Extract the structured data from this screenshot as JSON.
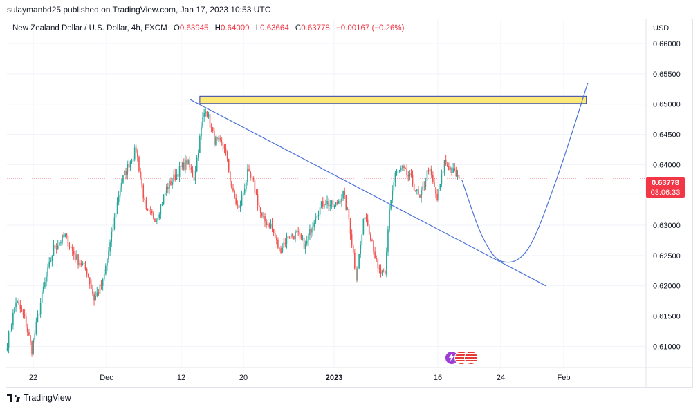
{
  "header": {
    "published_text": "sulaymanbd25 published on TradingView.com, Jan 17, 2023 10:53 UTC"
  },
  "symbol": {
    "name": "New Zealand Dollar / U.S. Dollar, 4h, FXCM",
    "open_label": "O",
    "open": "0.63945",
    "high_label": "H",
    "high": "0.64009",
    "low_label": "L",
    "low": "0.63664",
    "close_label": "C",
    "close": "0.63778",
    "change": "−0.00167 (−0.26%)"
  },
  "price_axis": {
    "currency": "USD",
    "ticks": [
      "0.66000",
      "0.65500",
      "0.65000",
      "0.64500",
      "0.64000",
      "0.63500",
      "0.63000",
      "0.62500",
      "0.62000",
      "0.61500",
      "0.61000"
    ],
    "current_price": "0.63778",
    "countdown": "03:06:33"
  },
  "time_axis": {
    "ticks": [
      "22",
      "Dec",
      "12",
      "20",
      "2023",
      "16",
      "24",
      "Feb"
    ]
  },
  "footer": {
    "brand": "TradingView"
  },
  "colors": {
    "up": "#26a69a",
    "down": "#ef5350",
    "trendline": "#4a72d9",
    "zone_fill": "#fce97a",
    "zone_border": "#2f3fb0",
    "price_line": "#f23645"
  },
  "event_icons": [
    "lightning-icon",
    "us-flag-icon",
    "us-flag-icon"
  ],
  "chart_data": {
    "type": "candlestick",
    "title": "New Zealand Dollar / U.S. Dollar, 4h, FXCM",
    "ylim": [
      0.6065,
      0.664
    ],
    "current_price": 0.63778,
    "anchors": [
      {
        "i": 0,
        "p": 0.6105
      },
      {
        "i": 6,
        "p": 0.6175
      },
      {
        "i": 12,
        "p": 0.6145
      },
      {
        "i": 17,
        "p": 0.6095
      },
      {
        "i": 24,
        "p": 0.6185
      },
      {
        "i": 32,
        "p": 0.6262
      },
      {
        "i": 40,
        "p": 0.6282
      },
      {
        "i": 47,
        "p": 0.6248
      },
      {
        "i": 55,
        "p": 0.6225
      },
      {
        "i": 60,
        "p": 0.6178
      },
      {
        "i": 66,
        "p": 0.6205
      },
      {
        "i": 72,
        "p": 0.6282
      },
      {
        "i": 78,
        "p": 0.6365
      },
      {
        "i": 84,
        "p": 0.6402
      },
      {
        "i": 89,
        "p": 0.6425
      },
      {
        "i": 96,
        "p": 0.632
      },
      {
        "i": 103,
        "p": 0.6312
      },
      {
        "i": 110,
        "p": 0.636
      },
      {
        "i": 118,
        "p": 0.6388
      },
      {
        "i": 124,
        "p": 0.6405
      },
      {
        "i": 129,
        "p": 0.6378
      },
      {
        "i": 135,
        "p": 0.6475
      },
      {
        "i": 137,
        "p": 0.6495
      },
      {
        "i": 143,
        "p": 0.644
      },
      {
        "i": 150,
        "p": 0.643
      },
      {
        "i": 156,
        "p": 0.635
      },
      {
        "i": 160,
        "p": 0.6325
      },
      {
        "i": 166,
        "p": 0.6385
      },
      {
        "i": 170,
        "p": 0.6368
      },
      {
        "i": 176,
        "p": 0.631
      },
      {
        "i": 182,
        "p": 0.63
      },
      {
        "i": 188,
        "p": 0.6258
      },
      {
        "i": 194,
        "p": 0.6282
      },
      {
        "i": 200,
        "p": 0.6285
      },
      {
        "i": 206,
        "p": 0.6265
      },
      {
        "i": 213,
        "p": 0.6318
      },
      {
        "i": 219,
        "p": 0.634
      },
      {
        "i": 226,
        "p": 0.633
      },
      {
        "i": 232,
        "p": 0.6352
      },
      {
        "i": 236,
        "p": 0.631
      },
      {
        "i": 241,
        "p": 0.6215
      },
      {
        "i": 247,
        "p": 0.632
      },
      {
        "i": 252,
        "p": 0.6275
      },
      {
        "i": 256,
        "p": 0.6225
      },
      {
        "i": 261,
        "p": 0.6215
      },
      {
        "i": 264,
        "p": 0.633
      },
      {
        "i": 268,
        "p": 0.6385
      },
      {
        "i": 273,
        "p": 0.6392
      },
      {
        "i": 279,
        "p": 0.6375
      },
      {
        "i": 285,
        "p": 0.6342
      },
      {
        "i": 291,
        "p": 0.6395
      },
      {
        "i": 297,
        "p": 0.6342
      },
      {
        "i": 302,
        "p": 0.6405
      },
      {
        "i": 308,
        "p": 0.6388
      },
      {
        "i": 312,
        "p": 0.6378
      }
    ],
    "drawings": {
      "resistance_zone": {
        "start_index": 133,
        "end_index": 400,
        "top": 0.6513,
        "bottom": 0.6501
      },
      "trendline": {
        "start_index": 126,
        "start_price": 0.6508,
        "end_index": 372,
        "end_price": 0.62
      },
      "projection_curve": [
        {
          "i": 314,
          "p": 0.6375
        },
        {
          "i": 328,
          "p": 0.6282
        },
        {
          "i": 342,
          "p": 0.624
        },
        {
          "i": 360,
          "p": 0.6262
        },
        {
          "i": 380,
          "p": 0.638
        },
        {
          "i": 401,
          "p": 0.6535
        }
      ]
    }
  }
}
